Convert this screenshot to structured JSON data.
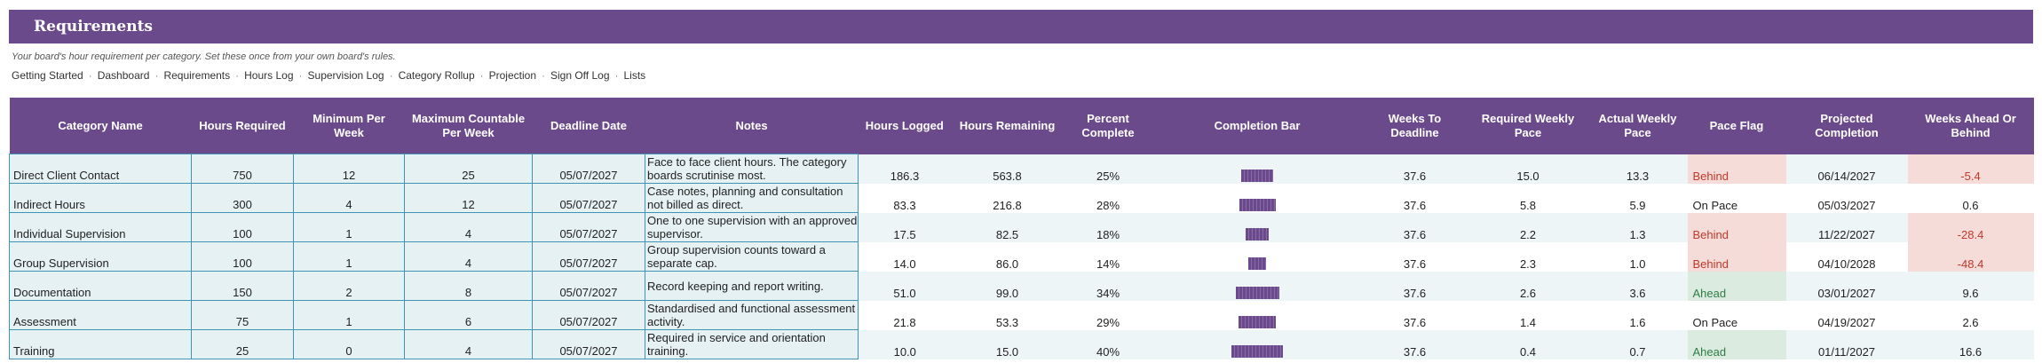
{
  "header": {
    "title": "Requirements",
    "subtitle": "Your board's hour requirement per category. Set these once from your own board's rules."
  },
  "nav": [
    "Getting Started",
    "Dashboard",
    "Requirements",
    "Hours Log",
    "Supervision Log",
    "Category Rollup",
    "Projection",
    "Sign Off Log",
    "Lists"
  ],
  "nav_separator": "·",
  "columns": [
    "Category Name",
    "Hours Required",
    "Minimum Per Week",
    "Maximum Countable Per Week",
    "Deadline Date",
    "Notes",
    "Hours Logged",
    "Hours Remaining",
    "Percent Complete",
    "Completion Bar",
    "Weeks To Deadline",
    "Required Weekly Pace",
    "Actual Weekly Pace",
    "Pace Flag",
    "Projected Completion",
    "Weeks Ahead Or Behind"
  ],
  "colors": {
    "header": "#6b4a8b",
    "input_fill": "#e6f1f4",
    "input_border": "#3f94b5",
    "behind_fill": "#f6dcd8",
    "ahead_fill": "#dcebdf"
  },
  "rows": [
    {
      "name": "Direct Client Contact",
      "required": "750",
      "min": "12",
      "max": "25",
      "deadline": "05/07/2027",
      "notes": "Face to face client hours. The category boards scrutinise most.",
      "logged": "186.3",
      "remaining": "563.8",
      "percent": "25%",
      "bar": 0.25,
      "weeks": "37.6",
      "req_pace": "15.0",
      "act_pace": "13.3",
      "flag": "Behind",
      "projected": "06/14/2027",
      "ahead": "-5.4"
    },
    {
      "name": "Indirect Hours",
      "required": "300",
      "min": "4",
      "max": "12",
      "deadline": "05/07/2027",
      "notes": "Case notes, planning and consultation not billed as direct.",
      "logged": "83.3",
      "remaining": "216.8",
      "percent": "28%",
      "bar": 0.28,
      "weeks": "37.6",
      "req_pace": "5.8",
      "act_pace": "5.9",
      "flag": "On Pace",
      "projected": "05/03/2027",
      "ahead": "0.6"
    },
    {
      "name": "Individual Supervision",
      "required": "100",
      "min": "1",
      "max": "4",
      "deadline": "05/07/2027",
      "notes": "One to one supervision with an approved supervisor.",
      "logged": "17.5",
      "remaining": "82.5",
      "percent": "18%",
      "bar": 0.18,
      "weeks": "37.6",
      "req_pace": "2.2",
      "act_pace": "1.3",
      "flag": "Behind",
      "projected": "11/22/2027",
      "ahead": "-28.4"
    },
    {
      "name": "Group Supervision",
      "required": "100",
      "min": "1",
      "max": "4",
      "deadline": "05/07/2027",
      "notes": "Group supervision counts toward a separate cap.",
      "logged": "14.0",
      "remaining": "86.0",
      "percent": "14%",
      "bar": 0.14,
      "weeks": "37.6",
      "req_pace": "2.3",
      "act_pace": "1.0",
      "flag": "Behind",
      "projected": "04/10/2028",
      "ahead": "-48.4"
    },
    {
      "name": "Documentation",
      "required": "150",
      "min": "2",
      "max": "8",
      "deadline": "05/07/2027",
      "notes": "Record keeping and report writing.",
      "logged": "51.0",
      "remaining": "99.0",
      "percent": "34%",
      "bar": 0.34,
      "weeks": "37.6",
      "req_pace": "2.6",
      "act_pace": "3.6",
      "flag": "Ahead",
      "projected": "03/01/2027",
      "ahead": "9.6"
    },
    {
      "name": "Assessment",
      "required": "75",
      "min": "1",
      "max": "6",
      "deadline": "05/07/2027",
      "notes": "Standardised and functional assessment activity.",
      "logged": "21.8",
      "remaining": "53.3",
      "percent": "29%",
      "bar": 0.29,
      "weeks": "37.6",
      "req_pace": "1.4",
      "act_pace": "1.6",
      "flag": "On Pace",
      "projected": "04/19/2027",
      "ahead": "2.6"
    },
    {
      "name": "Training",
      "required": "25",
      "min": "0",
      "max": "4",
      "deadline": "05/07/2027",
      "notes": "Required in service and orientation training.",
      "logged": "10.0",
      "remaining": "15.0",
      "percent": "40%",
      "bar": 0.4,
      "weeks": "37.6",
      "req_pace": "0.4",
      "act_pace": "0.7",
      "flag": "Ahead",
      "projected": "01/11/2027",
      "ahead": "16.6"
    }
  ]
}
